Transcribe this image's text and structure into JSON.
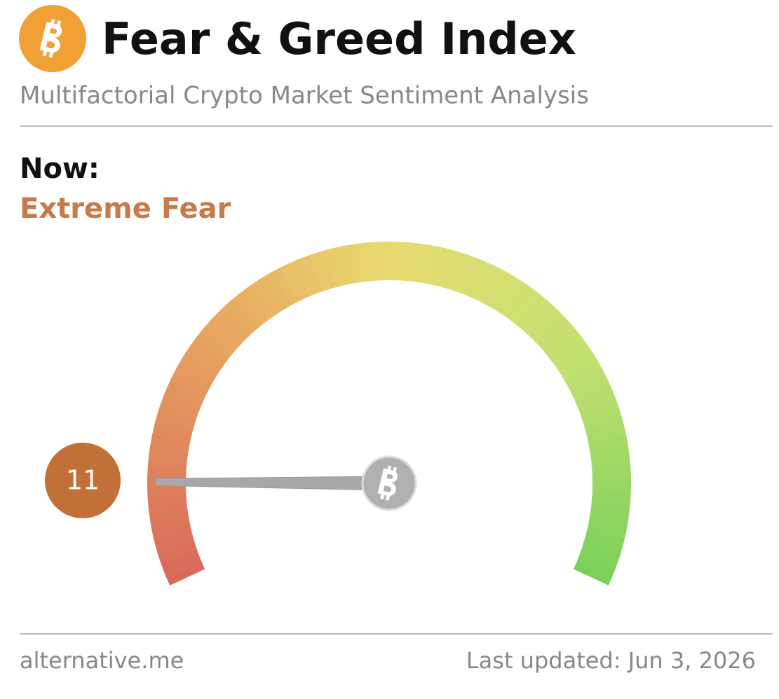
{
  "header": {
    "title": "Fear & Greed Index",
    "subtitle": "Multifactorial Crypto Market Sentiment Analysis"
  },
  "status": {
    "label": "Now:",
    "classification": "Extreme Fear"
  },
  "gauge": {
    "value": 11,
    "lim": [
      0,
      100
    ]
  },
  "footer": {
    "source": "alternative.me",
    "updated": "Last updated: Jun 3, 2026"
  }
}
